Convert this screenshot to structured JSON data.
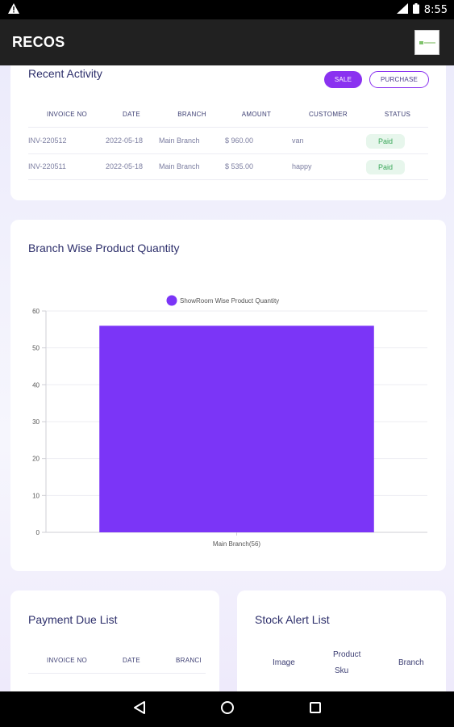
{
  "status_bar": {
    "time": "8:55"
  },
  "app_bar": {
    "title": "RECOS"
  },
  "recent_activity": {
    "title": "Recent Activity",
    "tabs": {
      "sale": "SALE",
      "purchase": "PURCHASE"
    },
    "columns": [
      "INVOICE NO",
      "DATE",
      "BRANCH",
      "AMOUNT",
      "CUSTOMER",
      "STATUS"
    ],
    "rows": [
      {
        "invoice": "INV-220512",
        "date": "2022-05-18",
        "branch": "Main Branch",
        "amount": "$ 960.00",
        "customer": "van",
        "status": "Paid"
      },
      {
        "invoice": "INV-220511",
        "date": "2022-05-18",
        "branch": "Main Branch",
        "amount": "$ 535.00",
        "customer": "happy",
        "status": "Paid"
      }
    ]
  },
  "branch_chart": {
    "title": "Branch Wise Product Quantity"
  },
  "chart_data": {
    "type": "bar",
    "categories": [
      "Main Branch(56)"
    ],
    "series": [
      {
        "name": "ShowRoom Wise Product Quantity",
        "values": [
          56
        ]
      }
    ],
    "ylim": [
      0,
      60
    ],
    "yticks": [
      0,
      10,
      20,
      30,
      40,
      50,
      60
    ],
    "bar_color": "#7b35f7",
    "legend": "top-center",
    "grid": true
  },
  "payment_due": {
    "title": "Payment Due List",
    "columns": [
      "INVOICE NO",
      "DATE",
      "BRANCI"
    ]
  },
  "stock_alert": {
    "title": "Stock Alert List",
    "columns": {
      "image": "Image",
      "product_line1": "Product",
      "product_line2": "Sku",
      "branch": "Branch"
    }
  }
}
